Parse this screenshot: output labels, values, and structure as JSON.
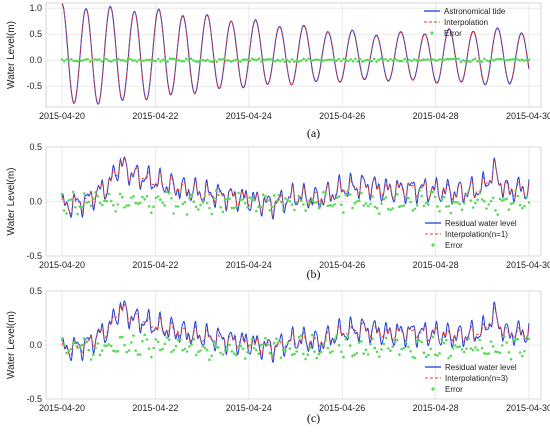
{
  "chart_data": [
    {
      "type": "line",
      "caption": "(a)",
      "ylabel": "Water Level(m)",
      "xlabel": "",
      "x_range": [
        "2015-04-20",
        "2015-04-30"
      ],
      "x_ticks": [
        "2015-04-20",
        "2015-04-22",
        "2015-04-24",
        "2015-04-26",
        "2015-04-28",
        "2015-04-30"
      ],
      "ylim": [
        -0.9,
        1.1
      ],
      "y_ticks": [
        -0.5,
        0.0,
        0.5,
        1.0
      ],
      "y_tick_labels": [
        "-0.5",
        "0.0",
        "0.5",
        "1.0"
      ],
      "grid": true,
      "legend_position": "top-right",
      "semidiurnal_cycles_per_day": 1.93,
      "series": [
        {
          "name": "Astronomical tide",
          "style": "solid-line",
          "color": "#1f3fd6",
          "x": [
            "2015-04-20 00:00",
            "2015-04-21 00:00",
            "2015-04-22 00:00",
            "2015-04-23 00:00",
            "2015-04-24 00:00",
            "2015-04-25 00:00",
            "2015-04-26 00:00",
            "2015-04-27 00:00",
            "2015-04-28 00:00",
            "2015-04-29 00:00",
            "2015-04-30 00:00"
          ],
          "high_water": [
            1.05,
            1.0,
            0.95,
            0.85,
            0.75,
            0.65,
            0.55,
            0.5,
            0.55,
            0.6,
            0.55
          ],
          "low_water": [
            -0.85,
            -0.82,
            -0.72,
            -0.6,
            -0.5,
            -0.45,
            -0.4,
            -0.38,
            -0.42,
            -0.45,
            -0.48
          ]
        },
        {
          "name": "Interpolation",
          "style": "dashed-line",
          "color": "#e8392a"
        },
        {
          "name": "Error",
          "style": "points",
          "color": "#5bd85b",
          "typical_range": [
            -0.03,
            0.03
          ]
        }
      ]
    },
    {
      "type": "line",
      "caption": "(b)",
      "ylabel": "Water Level(m)",
      "xlabel": "",
      "x_range": [
        "2015-04-20",
        "2015-04-30"
      ],
      "x_ticks": [
        "2015-04-20",
        "2015-04-22",
        "2015-04-24",
        "2015-04-26",
        "2015-04-28",
        "2015-04-30"
      ],
      "ylim": [
        -0.5,
        0.5
      ],
      "y_ticks": [
        -0.5,
        0.0,
        0.5
      ],
      "y_tick_labels": [
        "-0.5",
        "0.0",
        "0.5"
      ],
      "grid": true,
      "legend_position": "bottom-right",
      "series": [
        {
          "name": "Residual water level",
          "style": "solid-line",
          "color": "#1f3fd6",
          "x": [
            "2015-04-20 00:00",
            "2015-04-20 12:00",
            "2015-04-21 00:00",
            "2015-04-21 06:00",
            "2015-04-21 12:00",
            "2015-04-22 00:00",
            "2015-04-22 12:00",
            "2015-04-23 00:00",
            "2015-04-23 12:00",
            "2015-04-24 00:00",
            "2015-04-24 12:00",
            "2015-04-25 00:00",
            "2015-04-25 12:00",
            "2015-04-26 00:00",
            "2015-04-26 12:00",
            "2015-04-27 00:00",
            "2015-04-27 12:00",
            "2015-04-28 00:00",
            "2015-04-28 12:00",
            "2015-04-29 00:00",
            "2015-04-29 06:00",
            "2015-04-29 12:00",
            "2015-04-30 00:00"
          ],
          "y": [
            -0.05,
            0.0,
            0.15,
            0.35,
            0.25,
            0.18,
            0.12,
            0.08,
            0.05,
            0.02,
            -0.03,
            0.05,
            0.02,
            0.12,
            0.15,
            0.1,
            0.12,
            0.1,
            0.08,
            0.12,
            0.28,
            0.1,
            0.12
          ]
        },
        {
          "name": "Interpolation(n=1)",
          "style": "dashed-line",
          "color": "#e8392a"
        },
        {
          "name": "Error",
          "style": "points",
          "color": "#5bd85b",
          "typical_range": [
            -0.12,
            0.1
          ]
        }
      ]
    },
    {
      "type": "line",
      "caption": "(c)",
      "ylabel": "Water Level(m)",
      "xlabel": "",
      "x_range": [
        "2015-04-20",
        "2015-04-30"
      ],
      "x_ticks": [
        "2015-04-20",
        "2015-04-22",
        "2015-04-24",
        "2015-04-26",
        "2015-04-28",
        "2015-04-30"
      ],
      "ylim": [
        -0.5,
        0.5
      ],
      "y_ticks": [
        -0.5,
        0.0,
        0.5
      ],
      "y_tick_labels": [
        "-0.5",
        "0.0",
        "0.5"
      ],
      "grid": true,
      "legend_position": "bottom-right",
      "series": [
        {
          "name": "Residual water level",
          "style": "solid-line",
          "color": "#1f3fd6",
          "x": [
            "2015-04-20 00:00",
            "2015-04-20 12:00",
            "2015-04-21 00:00",
            "2015-04-21 06:00",
            "2015-04-21 12:00",
            "2015-04-22 00:00",
            "2015-04-22 12:00",
            "2015-04-23 00:00",
            "2015-04-23 12:00",
            "2015-04-24 00:00",
            "2015-04-24 12:00",
            "2015-04-25 00:00",
            "2015-04-25 12:00",
            "2015-04-26 00:00",
            "2015-04-26 12:00",
            "2015-04-27 00:00",
            "2015-04-27 12:00",
            "2015-04-28 00:00",
            "2015-04-28 12:00",
            "2015-04-29 00:00",
            "2015-04-29 06:00",
            "2015-04-29 12:00",
            "2015-04-30 00:00"
          ],
          "y": [
            -0.05,
            0.0,
            0.15,
            0.35,
            0.25,
            0.18,
            0.12,
            0.08,
            0.05,
            0.02,
            -0.03,
            0.05,
            0.02,
            0.12,
            0.15,
            0.1,
            0.12,
            0.1,
            0.08,
            0.12,
            0.28,
            0.1,
            0.12
          ]
        },
        {
          "name": "Interpolation(n=3)",
          "style": "dashed-line",
          "color": "#e8392a"
        },
        {
          "name": "Error",
          "style": "points",
          "color": "#5bd85b",
          "typical_range": [
            -0.15,
            0.1
          ]
        }
      ]
    }
  ]
}
